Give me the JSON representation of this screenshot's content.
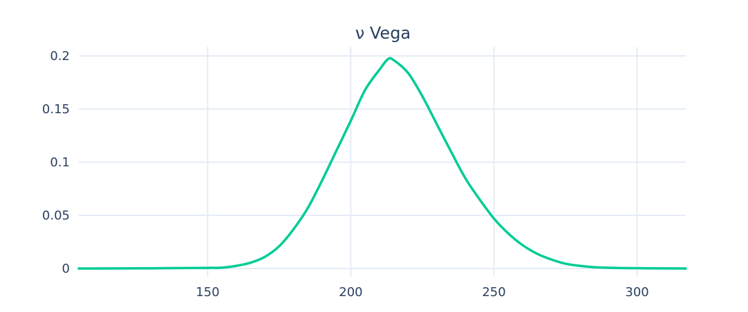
{
  "chart_data": {
    "type": "line",
    "title": "ν Vega",
    "xlabel": "",
    "ylabel": "",
    "xlim": [
      105,
      317
    ],
    "ylim": [
      0,
      0.2
    ],
    "xticks": [
      150,
      200,
      250,
      300
    ],
    "yticks": [
      0,
      0.05,
      0.1,
      0.15,
      0.2
    ],
    "xtick_labels": [
      "150",
      "200",
      "250",
      "300"
    ],
    "ytick_labels": [
      "0",
      "0.05",
      "0.1",
      "0.15",
      "0.2"
    ],
    "grid": true,
    "legend": "none",
    "color": "#00cc96",
    "series": [
      {
        "x": [
          105,
          110,
          120,
          130,
          140,
          150,
          155,
          160,
          165,
          170,
          175,
          180,
          185,
          190,
          195,
          200,
          205,
          210,
          213,
          215,
          220,
          225,
          230,
          235,
          240,
          245,
          250,
          255,
          260,
          265,
          270,
          275,
          280,
          285,
          290,
          295,
          300,
          305,
          310,
          317
        ],
        "y": [
          0.0,
          0.0,
          0.0001,
          0.0002,
          0.0004,
          0.0006,
          0.0008,
          0.0025,
          0.0055,
          0.011,
          0.021,
          0.037,
          0.057,
          0.083,
          0.111,
          0.139,
          0.168,
          0.187,
          0.197,
          0.196,
          0.184,
          0.162,
          0.136,
          0.11,
          0.085,
          0.065,
          0.047,
          0.033,
          0.022,
          0.014,
          0.0085,
          0.0045,
          0.0025,
          0.0012,
          0.0007,
          0.0004,
          0.0003,
          0.0002,
          0.0001,
          0.0
        ]
      }
    ]
  }
}
